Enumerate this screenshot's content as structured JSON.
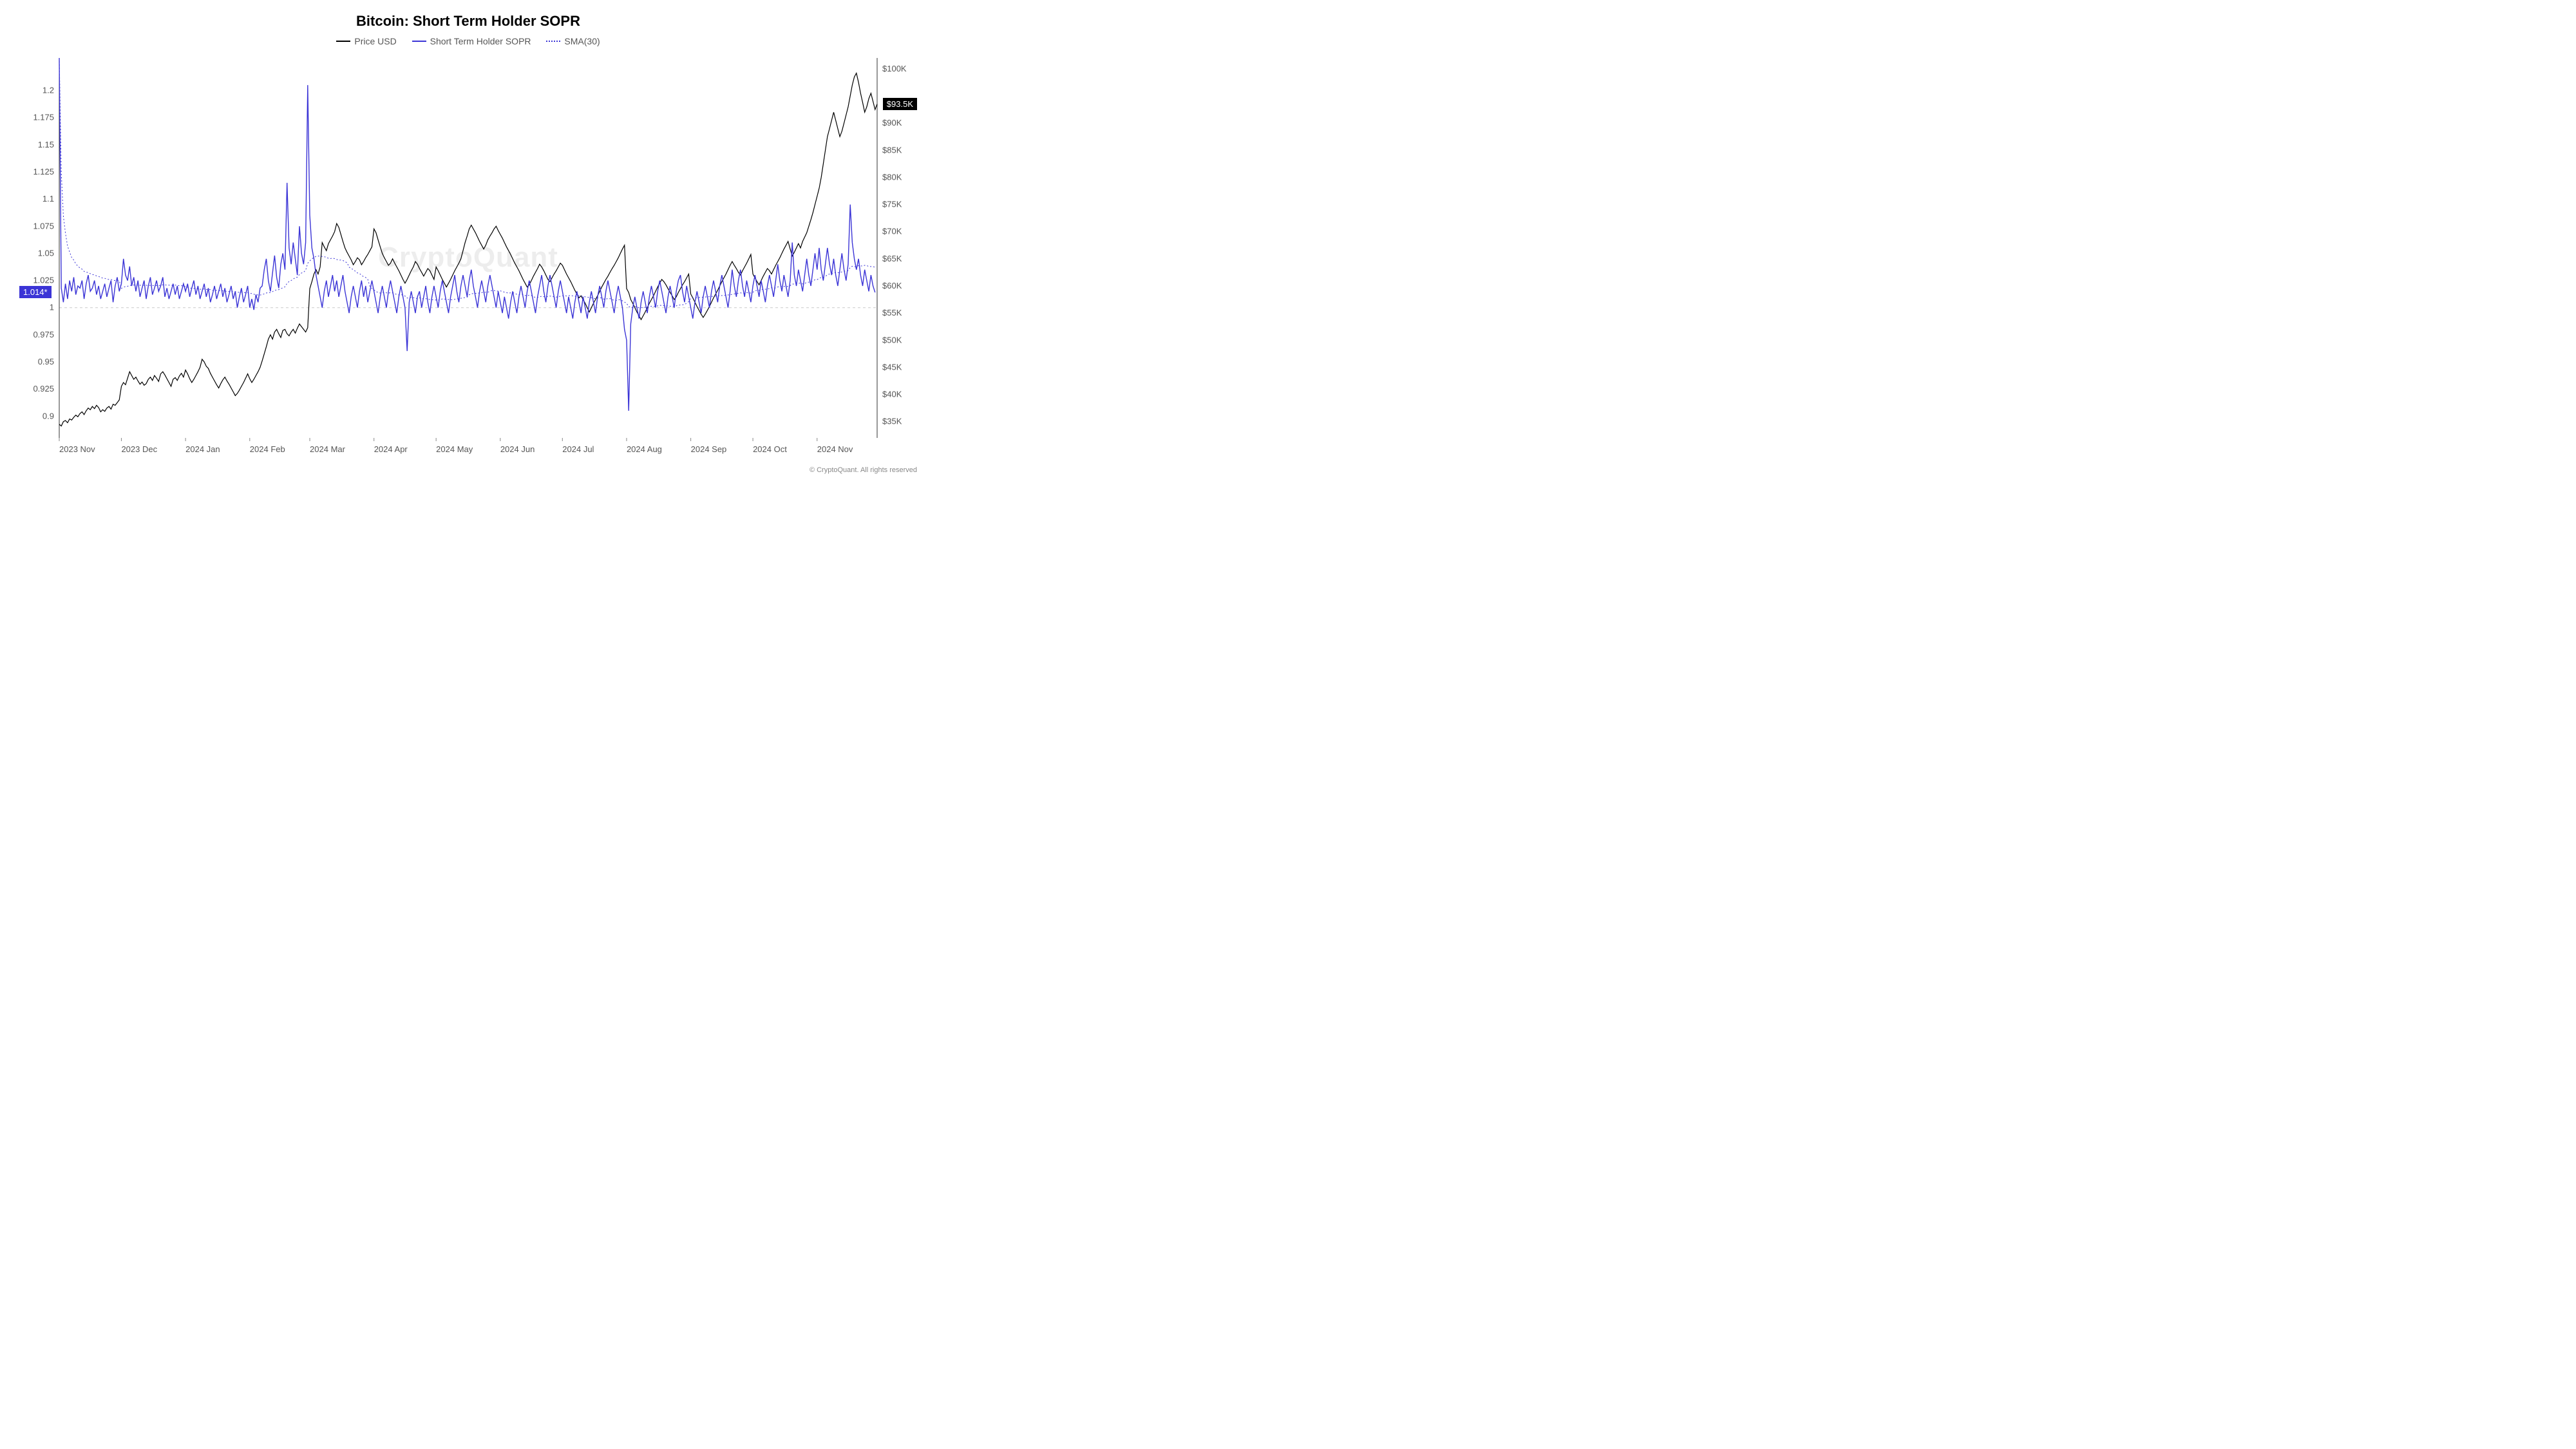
{
  "title": "Bitcoin: Short Term Holder SOPR",
  "title_fontsize": 22,
  "watermark": "CryptoQuant",
  "footer": "© CryptoQuant. All rights reserved",
  "legend": [
    {
      "label": "Price USD",
      "color": "#000000",
      "style": "solid"
    },
    {
      "label": "Short Term Holder SOPR",
      "color": "#3b34d6",
      "style": "solid"
    },
    {
      "label": "SMA(30)",
      "color": "#3b34d6",
      "style": "dotted"
    }
  ],
  "left_axis": {
    "ticks": [
      0.9,
      0.925,
      0.95,
      0.975,
      1,
      1.025,
      1.05,
      1.075,
      1.1,
      1.125,
      1.15,
      1.175,
      1.2
    ],
    "min": 0.88,
    "max": 1.23,
    "badge": {
      "text": "1.014*",
      "color": "#3b34d6",
      "value": 1.014
    },
    "ref_line": {
      "value": 1.0,
      "color": "#cccccc",
      "dash": "4,4"
    }
  },
  "right_axis": {
    "ticks": [
      35000,
      40000,
      45000,
      50000,
      55000,
      60000,
      65000,
      70000,
      75000,
      80000,
      85000,
      90000,
      100000
    ],
    "tick_labels": [
      "$35K",
      "$40K",
      "$45K",
      "$50K",
      "$55K",
      "$60K",
      "$65K",
      "$70K",
      "$75K",
      "$80K",
      "$85K",
      "$90K",
      "$100K"
    ],
    "min": 32000,
    "max": 102000,
    "badge": {
      "text": "$93.5K",
      "color": "#000000",
      "value": 93500
    }
  },
  "x_axis": {
    "labels": [
      "2023 Nov",
      "2023 Dec",
      "2024 Jan",
      "2024 Feb",
      "2024 Mar",
      "2024 Apr",
      "2024 May",
      "2024 Jun",
      "2024 Jul",
      "2024 Aug",
      "2024 Sep",
      "2024 Oct",
      "2024 Nov"
    ],
    "positions": [
      0,
      30,
      61,
      92,
      121,
      152,
      182,
      213,
      243,
      274,
      305,
      335,
      366
    ],
    "n_points": 396
  },
  "colors": {
    "price": "#000000",
    "sopr": "#3b34d6",
    "sma": "#3b34d6",
    "grid": "#e0e0e0",
    "bg": "#ffffff"
  },
  "line_widths": {
    "price": 1.2,
    "sopr": 1.4,
    "sma": 1.0
  },
  "series": {
    "price": [
      34500,
      34200,
      35000,
      35200,
      34800,
      35500,
      35300,
      35800,
      36200,
      35900,
      36500,
      36800,
      36300,
      37000,
      37500,
      37200,
      37800,
      37400,
      38000,
      37600,
      36800,
      37200,
      36900,
      37500,
      37800,
      37300,
      38200,
      38000,
      38500,
      39000,
      41500,
      42200,
      41800,
      43000,
      44200,
      43500,
      42800,
      43200,
      42500,
      41900,
      42300,
      41700,
      42000,
      42800,
      43200,
      42600,
      43500,
      43000,
      42400,
      43800,
      44200,
      43600,
      42900,
      42200,
      41500,
      42800,
      43100,
      42600,
      43400,
      43900,
      43200,
      44500,
      43800,
      42900,
      42200,
      42800,
      43500,
      44200,
      45000,
      46500,
      46000,
      45200,
      44800,
      43900,
      43200,
      42500,
      41800,
      41200,
      42000,
      42700,
      43200,
      42500,
      41900,
      41200,
      40500,
      39800,
      40200,
      40800,
      41500,
      42200,
      43000,
      43800,
      42900,
      42200,
      42800,
      43500,
      44200,
      45000,
      46200,
      47500,
      48800,
      50200,
      51000,
      50200,
      51500,
      52000,
      51200,
      50500,
      51800,
      52000,
      51200,
      50800,
      51500,
      52000,
      51300,
      52200,
      53000,
      52500,
      52000,
      51500,
      52300,
      59500,
      60800,
      62200,
      63000,
      62200,
      63500,
      68000,
      67200,
      66500,
      67800,
      68500,
      69200,
      70000,
      71500,
      70800,
      69500,
      68200,
      67000,
      66200,
      65500,
      64800,
      63900,
      64500,
      65200,
      64800,
      63900,
      64500,
      65200,
      65800,
      66500,
      67200,
      70500,
      69800,
      68500,
      67200,
      66000,
      65200,
      64500,
      63800,
      64200,
      65000,
      64200,
      63500,
      62800,
      62000,
      61200,
      60500,
      61200,
      62000,
      62800,
      63500,
      64500,
      64000,
      63200,
      62500,
      61800,
      62500,
      63200,
      62800,
      62000,
      61200,
      63500,
      62800,
      62000,
      61200,
      60500,
      59800,
      60500,
      61200,
      62000,
      62800,
      63500,
      64200,
      65000,
      66500,
      68000,
      69200,
      70500,
      71200,
      70500,
      69800,
      69000,
      68200,
      67500,
      66800,
      67500,
      68500,
      69200,
      69800,
      70500,
      71000,
      70200,
      69500,
      68800,
      68000,
      67200,
      66500,
      65800,
      65000,
      64200,
      63500,
      62800,
      62000,
      61200,
      60500,
      59800,
      60200,
      61000,
      61800,
      62500,
      63200,
      64000,
      63500,
      62800,
      62000,
      61200,
      60800,
      61500,
      62200,
      62800,
      63500,
      64200,
      63800,
      63000,
      62200,
      61500,
      60800,
      60000,
      59200,
      58500,
      57800,
      58200,
      57500,
      56800,
      56000,
      55200,
      56000,
      56800,
      57500,
      58200,
      59000,
      59800,
      60500,
      61200,
      61800,
      62500,
      63200,
      63800,
      64500,
      65200,
      66000,
      66800,
      67500,
      59500,
      58800,
      57500,
      56800,
      56000,
      55200,
      54500,
      53800,
      54500,
      55200,
      56000,
      56800,
      57500,
      58200,
      59000,
      59800,
      60500,
      61200,
      60800,
      60200,
      59500,
      58800,
      58200,
      57500,
      58000,
      58800,
      59500,
      60200,
      60800,
      61500,
      62200,
      58500,
      57800,
      57000,
      56200,
      55500,
      54800,
      54200,
      54800,
      55500,
      56200,
      57000,
      57800,
      58500,
      59200,
      60000,
      60800,
      61500,
      62200,
      63000,
      63800,
      64500,
      63800,
      63200,
      62500,
      62000,
      62800,
      63500,
      64200,
      65000,
      65800,
      62200,
      61500,
      60800,
      60200,
      61000,
      61800,
      62500,
      63200,
      62800,
      62200,
      63000,
      63800,
      64500,
      65200,
      66000,
      66800,
      67500,
      68200,
      66800,
      65500,
      66200,
      67000,
      67800,
      67000,
      68200,
      69000,
      69800,
      71000,
      72200,
      73500,
      75000,
      76500,
      78000,
      80000,
      82500,
      85000,
      87500,
      89000,
      90500,
      92000,
      90500,
      89000,
      87500,
      88500,
      90000,
      91500,
      93000,
      95000,
      97000,
      98500,
      99200,
      97500,
      95500,
      93800,
      92000,
      93000,
      94500,
      95500,
      94000,
      92500,
      93500
    ],
    "sopr": [
      1.23,
      1.018,
      1.005,
      1.022,
      1.008,
      1.025,
      1.015,
      1.028,
      1.012,
      1.02,
      1.018,
      1.025,
      1.008,
      1.022,
      1.03,
      1.015,
      1.018,
      1.025,
      1.012,
      1.02,
      1.008,
      1.015,
      1.022,
      1.01,
      1.018,
      1.025,
      1.005,
      1.02,
      1.028,
      1.015,
      1.022,
      1.045,
      1.03,
      1.025,
      1.038,
      1.02,
      1.028,
      1.015,
      1.025,
      1.01,
      1.018,
      1.025,
      1.008,
      1.02,
      1.028,
      1.012,
      1.018,
      1.025,
      1.015,
      1.02,
      1.028,
      1.01,
      1.018,
      1.008,
      1.015,
      1.022,
      1.012,
      1.02,
      1.008,
      1.015,
      1.022,
      1.015,
      1.022,
      1.01,
      1.018,
      1.025,
      1.012,
      1.02,
      1.008,
      1.015,
      1.022,
      1.01,
      1.018,
      1.005,
      1.012,
      1.02,
      1.008,
      1.015,
      1.022,
      1.01,
      1.018,
      1.005,
      1.012,
      1.02,
      1.008,
      1.015,
      1.0,
      1.01,
      1.018,
      1.005,
      1.012,
      1.02,
      1.0,
      1.008,
      0.998,
      1.012,
      1.005,
      1.018,
      1.02,
      1.035,
      1.045,
      1.025,
      1.015,
      1.032,
      1.048,
      1.028,
      1.018,
      1.04,
      1.05,
      1.035,
      1.115,
      1.055,
      1.04,
      1.06,
      1.045,
      1.03,
      1.075,
      1.05,
      1.04,
      1.06,
      1.205,
      1.085,
      1.055,
      1.045,
      1.03,
      1.02,
      1.01,
      1.0,
      1.015,
      1.025,
      1.01,
      1.02,
      1.03,
      1.015,
      1.025,
      1.01,
      1.02,
      1.03,
      1.015,
      1.005,
      0.995,
      1.01,
      1.02,
      1.01,
      1.0,
      1.015,
      1.025,
      1.01,
      1.02,
      1.005,
      1.015,
      1.025,
      1.015,
      1.005,
      0.995,
      1.01,
      1.02,
      1.01,
      1.0,
      1.015,
      1.025,
      1.015,
      1.005,
      0.995,
      1.01,
      1.02,
      1.01,
      1.0,
      0.96,
      1.005,
      1.015,
      1.005,
      0.995,
      1.01,
      1.015,
      1.0,
      1.01,
      1.02,
      1.005,
      0.995,
      1.01,
      1.02,
      1.01,
      1.0,
      1.015,
      1.025,
      1.015,
      1.005,
      0.995,
      1.01,
      1.02,
      1.03,
      1.015,
      1.005,
      1.02,
      1.03,
      1.02,
      1.01,
      1.025,
      1.035,
      1.02,
      1.01,
      1.0,
      1.015,
      1.025,
      1.015,
      1.005,
      1.02,
      1.03,
      1.02,
      1.01,
      1.0,
      1.015,
      1.005,
      0.995,
      1.01,
      1.0,
      0.99,
      1.005,
      1.015,
      1.005,
      0.995,
      1.01,
      1.02,
      1.01,
      1.0,
      1.015,
      1.025,
      1.015,
      1.005,
      0.995,
      1.01,
      1.02,
      1.03,
      1.015,
      1.005,
      1.02,
      1.03,
      1.02,
      1.01,
      1.0,
      1.015,
      1.025,
      1.015,
      1.005,
      0.995,
      1.01,
      1.0,
      0.99,
      1.005,
      1.015,
      1.005,
      0.995,
      1.01,
      1.0,
      0.99,
      1.005,
      1.015,
      1.005,
      0.995,
      1.01,
      1.02,
      1.01,
      1.0,
      1.015,
      1.025,
      1.015,
      1.005,
      0.995,
      1.01,
      1.02,
      1.01,
      1.0,
      0.98,
      0.97,
      0.905,
      0.985,
      1.0,
      1.01,
      1.0,
      0.99,
      1.005,
      1.015,
      1.005,
      0.995,
      1.01,
      1.02,
      1.01,
      1.0,
      1.015,
      1.025,
      1.015,
      1.005,
      0.995,
      1.01,
      1.02,
      1.01,
      1.0,
      1.015,
      1.025,
      1.03,
      1.015,
      1.005,
      1.02,
      1.01,
      1.0,
      0.99,
      1.005,
      1.015,
      1.005,
      0.995,
      1.01,
      1.02,
      1.01,
      1.0,
      1.015,
      1.025,
      1.015,
      1.005,
      1.02,
      1.03,
      1.02,
      1.01,
      1.0,
      1.015,
      1.035,
      1.02,
      1.01,
      1.025,
      1.035,
      1.02,
      1.01,
      1.025,
      1.015,
      1.005,
      1.02,
      1.03,
      1.02,
      1.01,
      1.025,
      1.015,
      1.005,
      1.02,
      1.03,
      1.02,
      1.01,
      1.025,
      1.04,
      1.025,
      1.015,
      1.03,
      1.02,
      1.01,
      1.025,
      1.06,
      1.03,
      1.02,
      1.035,
      1.025,
      1.015,
      1.03,
      1.045,
      1.03,
      1.02,
      1.035,
      1.05,
      1.035,
      1.055,
      1.035,
      1.025,
      1.04,
      1.055,
      1.04,
      1.03,
      1.045,
      1.03,
      1.02,
      1.035,
      1.05,
      1.035,
      1.025,
      1.04,
      1.095,
      1.06,
      1.045,
      1.035,
      1.045,
      1.03,
      1.02,
      1.035,
      1.025,
      1.015,
      1.03,
      1.02,
      1.014
    ]
  }
}
